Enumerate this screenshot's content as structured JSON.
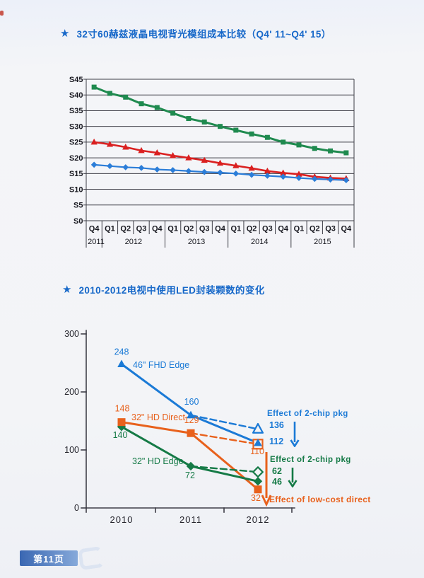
{
  "page": {
    "badge": "第11页",
    "accent_color": "#1768c9"
  },
  "sections": [
    {
      "bullet": "★",
      "title": "32寸60赫兹液晶电视背光模组成本比较（Q4' 11~Q4' 15）"
    },
    {
      "bullet": "★",
      "title": "2010-2012电视中使用LED封装颗数的变化"
    }
  ],
  "chart_data": [
    {
      "type": "line",
      "title": "32寸60赫兹液晶电视背光模组成本比较（Q4'11~Q4'15）",
      "categories": [
        "Q4",
        "Q1",
        "Q2",
        "Q3",
        "Q4",
        "Q1",
        "Q2",
        "Q3",
        "Q4",
        "Q1",
        "Q2",
        "Q3",
        "Q4",
        "Q1",
        "Q2",
        "Q3",
        "Q4"
      ],
      "year_groups": [
        {
          "label": "2011",
          "span": 1
        },
        {
          "label": "2012",
          "span": 4
        },
        {
          "label": "2013",
          "span": 4
        },
        {
          "label": "2014",
          "span": 4
        },
        {
          "label": "2015",
          "span": 4
        }
      ],
      "ylim": [
        0,
        45
      ],
      "ytick_step": 5,
      "ytick_labels": [
        "S0",
        "S5",
        "S10",
        "S15",
        "S20",
        "S25",
        "S30",
        "S35",
        "S40",
        "S45"
      ],
      "grid": true,
      "legend": "none",
      "series": [
        {
          "name": "green-squares",
          "color": "#1f8a4f",
          "marker": "square",
          "values": [
            42.5,
            40.5,
            39.3,
            37.2,
            36.0,
            34.2,
            32.5,
            31.4,
            30.0,
            28.8,
            27.6,
            26.5,
            25.0,
            24.1,
            23.0,
            22.2,
            21.6
          ]
        },
        {
          "name": "red-triangles",
          "color": "#da2020",
          "marker": "triangle",
          "values": [
            25.0,
            24.3,
            23.4,
            22.3,
            21.6,
            20.7,
            20.0,
            19.2,
            18.3,
            17.5,
            16.7,
            15.8,
            15.2,
            14.8,
            14.0,
            13.6,
            13.4
          ]
        },
        {
          "name": "blue-diamonds",
          "color": "#2b7dd8",
          "marker": "diamond",
          "values": [
            17.8,
            17.4,
            17.0,
            16.8,
            16.3,
            16.1,
            15.8,
            15.5,
            15.3,
            15.0,
            14.6,
            14.3,
            14.0,
            13.6,
            13.3,
            13.1,
            12.9
          ]
        }
      ]
    },
    {
      "type": "line",
      "title": "2010-2012电视中使用LED封装颗数的变化",
      "categories": [
        "2010",
        "2011",
        "2012"
      ],
      "ylim": [
        0,
        300
      ],
      "ytick_step": 100,
      "ytick_labels": [
        "0",
        "100",
        "200",
        "300"
      ],
      "grid": false,
      "series": [
        {
          "name": "46\" FHD Edge",
          "color": "#1b7ad6",
          "marker": "triangle",
          "dashed": false,
          "values": [
            248,
            160,
            112
          ],
          "point_labels": [
            "248",
            "160",
            null
          ]
        },
        {
          "name": "46\" FHD Edge 2-chip",
          "color": "#1b7ad6",
          "marker": "triangle-open",
          "dashed": true,
          "values": [
            null,
            160,
            136
          ],
          "point_labels": [
            null,
            null,
            null
          ]
        },
        {
          "name": "32\" HD Direct",
          "color": "#e8611c",
          "marker": "square",
          "dashed": false,
          "values": [
            148,
            129,
            32
          ],
          "point_labels": [
            "148",
            "129",
            "32"
          ]
        },
        {
          "name": "32\" HD Direct 2-chip",
          "color": "#e8611c",
          "marker": "square-open",
          "dashed": true,
          "values": [
            null,
            129,
            110
          ],
          "point_labels": [
            null,
            null,
            "110"
          ]
        },
        {
          "name": "32\" HD Edge",
          "color": "#157a46",
          "marker": "diamond",
          "dashed": false,
          "values": [
            140,
            72,
            46
          ],
          "point_labels": [
            "140",
            "72",
            null
          ]
        },
        {
          "name": "32\" HD Edge 2-chip",
          "color": "#157a46",
          "marker": "diamond-open",
          "dashed": true,
          "values": [
            null,
            72,
            62
          ],
          "point_labels": [
            null,
            null,
            null
          ]
        }
      ],
      "series_labels": [
        {
          "text": "46\" FHD Edge",
          "color": "#1b7ad6"
        },
        {
          "text": "32\" HD Direct",
          "color": "#e8611c"
        },
        {
          "text": "32\" HD Edge",
          "color": "#157a46"
        }
      ],
      "annotations": [
        {
          "text": "Effect of 2-chip pkg",
          "from": "136",
          "to": "112",
          "color": "#1b7ad6"
        },
        {
          "text": "Effect of 2-chip pkg",
          "from": "62",
          "to": "46",
          "color": "#157a46"
        },
        {
          "text": "Effect of low-cost direct",
          "color": "#e8611c"
        }
      ]
    }
  ]
}
